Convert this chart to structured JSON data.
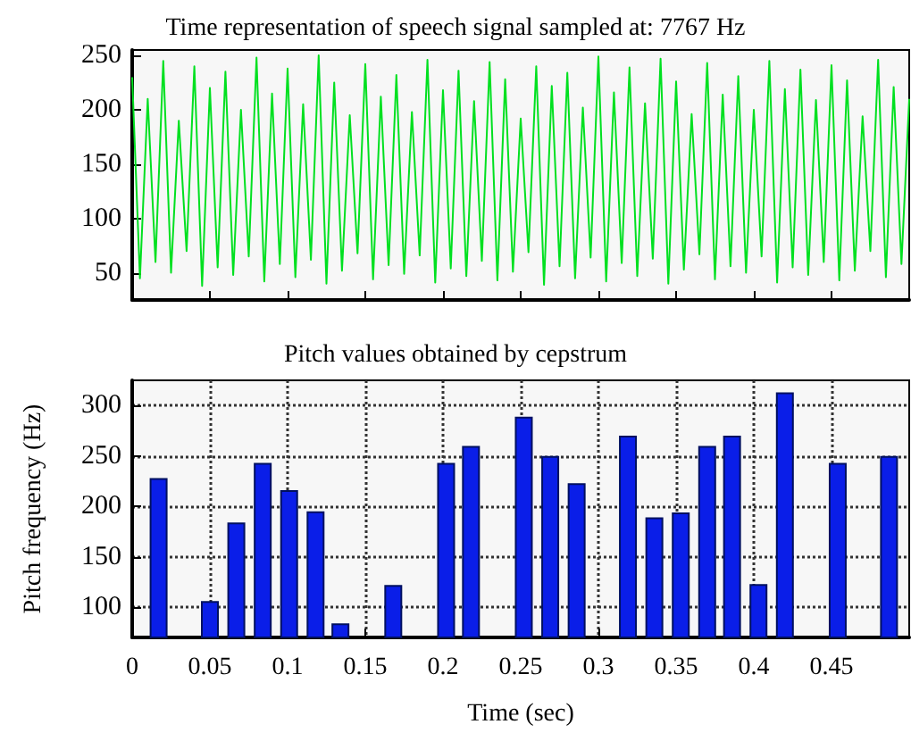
{
  "chart_data": [
    {
      "type": "line",
      "title": "Time representation of speech signal sampled at: 7767 Hz",
      "x": [
        0,
        0.005,
        0.01,
        0.015,
        0.02,
        0.025,
        0.03,
        0.035,
        0.04,
        0.045,
        0.05,
        0.055,
        0.06,
        0.065,
        0.07,
        0.075,
        0.08,
        0.085,
        0.09,
        0.095,
        0.1,
        0.105,
        0.11,
        0.115,
        0.12,
        0.125,
        0.13,
        0.135,
        0.14,
        0.145,
        0.15,
        0.155,
        0.16,
        0.165,
        0.17,
        0.175,
        0.18,
        0.185,
        0.19,
        0.195,
        0.2,
        0.205,
        0.21,
        0.215,
        0.22,
        0.225,
        0.23,
        0.235,
        0.24,
        0.245,
        0.25,
        0.255,
        0.26,
        0.265,
        0.27,
        0.275,
        0.28,
        0.285,
        0.29,
        0.295,
        0.3,
        0.305,
        0.31,
        0.315,
        0.32,
        0.325,
        0.33,
        0.335,
        0.34,
        0.345,
        0.35,
        0.355,
        0.36,
        0.365,
        0.37,
        0.375,
        0.38,
        0.385,
        0.39,
        0.395,
        0.4,
        0.405,
        0.41,
        0.415,
        0.42,
        0.425,
        0.43,
        0.435,
        0.44,
        0.445,
        0.45,
        0.455,
        0.46,
        0.465,
        0.47,
        0.475,
        0.48,
        0.485,
        0.49,
        0.495,
        0.5
      ],
      "series": [
        {
          "color": "#00e020",
          "values": [
            230,
            45,
            210,
            60,
            245,
            50,
            190,
            70,
            240,
            38,
            220,
            55,
            235,
            48,
            200,
            65,
            248,
            42,
            215,
            58,
            238,
            46,
            205,
            62,
            250,
            40,
            225,
            52,
            195,
            68,
            242,
            44,
            212,
            57,
            232,
            49,
            198,
            66,
            246,
            41,
            218,
            54,
            236,
            47,
            208,
            61,
            244,
            43,
            228,
            51,
            192,
            69,
            240,
            39,
            222,
            56,
            234,
            45,
            202,
            64,
            249,
            42,
            216,
            59,
            239,
            47,
            206,
            63,
            247,
            40,
            226,
            53,
            196,
            67,
            243,
            44,
            214,
            56,
            231,
            50,
            200,
            65,
            245,
            41,
            219,
            55,
            237,
            48,
            209,
            60,
            241,
            43,
            227,
            52,
            194,
            70,
            246,
            46,
            221,
            58,
            210
          ]
        }
      ],
      "xlim": [
        0,
        0.5
      ],
      "xticks": [
        0,
        0.05,
        0.1,
        0.15,
        0.2,
        0.25,
        0.3,
        0.35,
        0.4,
        0.45
      ],
      "ylim": [
        25,
        255
      ],
      "yticks": [
        50,
        100,
        150,
        200,
        250
      ],
      "tick_labels": "y",
      "marker": "none",
      "line_style": "solid"
    },
    {
      "type": "bar",
      "title": "Pitch values obtained by cepstrum",
      "xlabel": "Time (sec)",
      "ylabel": "Pitch frequency (Hz)",
      "x": [
        0.017,
        0.05,
        0.067,
        0.084,
        0.101,
        0.118,
        0.134,
        0.168,
        0.202,
        0.218,
        0.252,
        0.269,
        0.286,
        0.319,
        0.336,
        0.353,
        0.37,
        0.386,
        0.403,
        0.42,
        0.454,
        0.487
      ],
      "series": [
        {
          "color": "#0a1ee8",
          "values": [
            228,
            106,
            184,
            243,
            216,
            195,
            84,
            122,
            243,
            260,
            289,
            250,
            223,
            270,
            189,
            194,
            260,
            270,
            123,
            313,
            243,
            250
          ]
        }
      ],
      "xlim": [
        0,
        0.5
      ],
      "xticks": [
        0,
        0.05,
        0.1,
        0.15,
        0.2,
        0.25,
        0.3,
        0.35,
        0.4,
        0.45
      ],
      "ylim": [
        70,
        325
      ],
      "yticks": [
        100,
        150,
        200,
        250,
        300
      ],
      "grid": true
    }
  ]
}
